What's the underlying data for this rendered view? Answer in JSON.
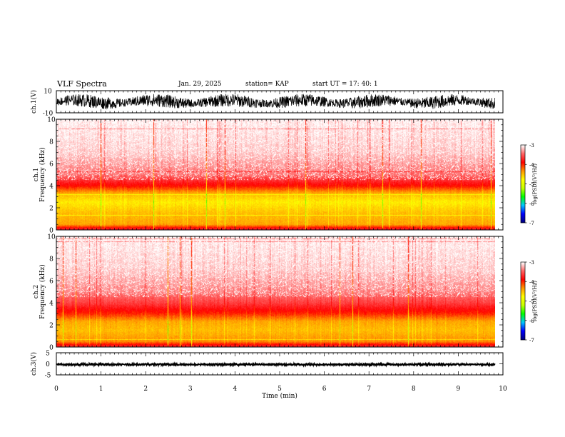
{
  "header": {
    "title": "VLF Spectra",
    "date": "Jan. 29, 2025",
    "station": "station= KAP",
    "start": "start  UT =   17: 40: 1"
  },
  "chart_data": {
    "type": "heatmap",
    "xlabel": "Time  (min)",
    "xlim": [
      0,
      10
    ],
    "xticks": [
      0,
      1,
      2,
      3,
      4,
      5,
      6,
      7,
      8,
      9,
      10
    ],
    "data_end_min": 9.82,
    "panels": [
      {
        "id": "ch1-waveform",
        "kind": "line",
        "ylabel": "ch.1(V)",
        "ylim": [
          -10,
          10
        ],
        "yticks": [
          "10",
          "-10"
        ],
        "approx_range": [
          -6,
          6
        ],
        "color": "#000000"
      },
      {
        "id": "ch1-spectrogram",
        "kind": "spectrogram",
        "ylabel_channel": "ch.1",
        "ylabel": "Frequency  (kHz)",
        "ylim": [
          0,
          10
        ],
        "yticks": [
          0,
          2,
          4,
          6,
          8,
          10
        ],
        "band_profile_khz_logpsd": [
          [
            0,
            -3.6
          ],
          [
            0.5,
            -4.4
          ],
          [
            1.5,
            -4.5
          ],
          [
            2.5,
            -4.7
          ],
          [
            3.2,
            -4.5
          ],
          [
            4,
            -3.9
          ],
          [
            5,
            -3.4
          ],
          [
            7,
            -3.15
          ],
          [
            10,
            -3.05
          ]
        ]
      },
      {
        "id": "ch2-spectrogram",
        "kind": "spectrogram",
        "ylabel_channel": "ch.2",
        "ylabel": "Frequency  (kHz)",
        "ylim": [
          0,
          10
        ],
        "yticks": [
          0,
          2,
          4,
          6,
          8,
          10
        ],
        "band_profile_khz_logpsd": [
          [
            0,
            -3.6
          ],
          [
            0.5,
            -4.3
          ],
          [
            1.5,
            -4.5
          ],
          [
            2.3,
            -4.4
          ],
          [
            3,
            -4.0
          ],
          [
            4,
            -3.6
          ],
          [
            5,
            -3.35
          ],
          [
            7,
            -3.15
          ],
          [
            10,
            -3.05
          ]
        ]
      },
      {
        "id": "ch3-waveform",
        "kind": "line",
        "ylabel": "ch.3(V)",
        "ylim": [
          -5,
          5
        ],
        "yticks": [
          "5",
          "0",
          "-5"
        ],
        "approx_range": [
          -0.8,
          0.2
        ],
        "color": "#000000"
      }
    ],
    "colorbar": {
      "label": "log(PSD)(V²/Hz)",
      "range": [
        -7,
        -3
      ],
      "ticks": [
        "-3",
        "-4",
        "-5",
        "-6",
        "-7"
      ],
      "colors": [
        "#000080",
        "#0000ff",
        "#00c8ff",
        "#00ff00",
        "#c8ff00",
        "#ffff00",
        "#ff9600",
        "#ff0000",
        "#ff6464",
        "#ffffff"
      ]
    }
  }
}
